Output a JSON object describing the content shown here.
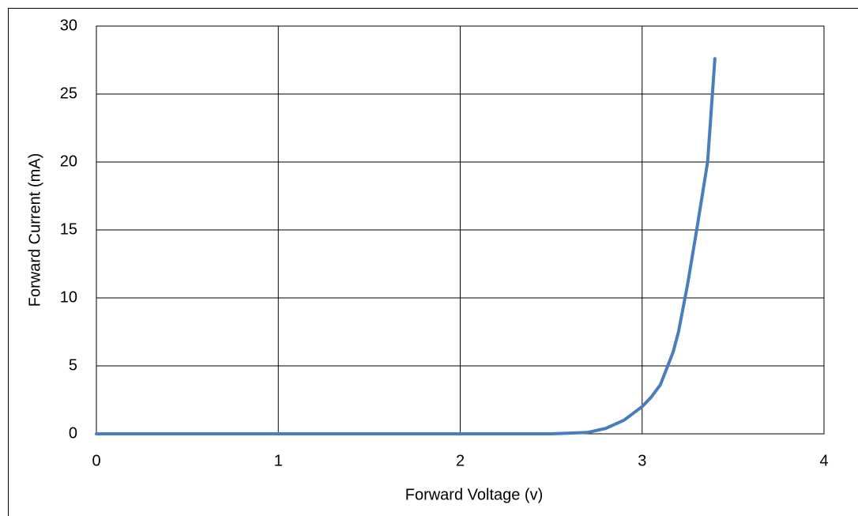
{
  "chart_data": {
    "type": "line",
    "x_label": "Forward Voltage (v)",
    "y_label": "Forward Current (mA)",
    "series": [
      {
        "color": "#4a7ebb",
        "x": [
          0,
          1,
          2,
          2.5,
          2.7,
          2.8,
          2.9,
          3.0,
          3.05,
          3.1,
          3.17,
          3.2,
          3.25,
          3.3,
          3.36,
          3.4
        ],
        "values": [
          0,
          0,
          0,
          0,
          0.1,
          0.4,
          1.0,
          2.0,
          2.7,
          3.6,
          6,
          7.5,
          11,
          15,
          20,
          27.6
        ]
      }
    ],
    "xlim": [
      0,
      4
    ],
    "xticks": [
      0,
      1,
      2,
      3,
      4
    ],
    "ylim": [
      0,
      30
    ],
    "yticks": [
      0,
      5,
      10,
      15,
      20,
      25,
      30
    ],
    "grid": true
  }
}
